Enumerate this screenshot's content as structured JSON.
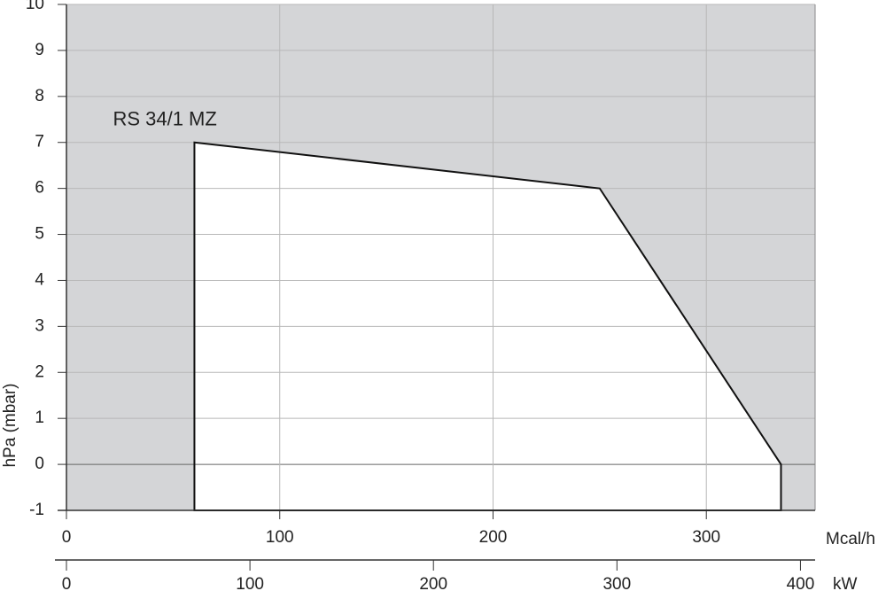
{
  "chart_data": {
    "type": "area",
    "series": [
      {
        "name": "RS 34/1 MZ",
        "x": [
          60,
          60,
          250,
          335,
          335
        ],
        "values": [
          -1,
          7,
          6,
          0,
          -1
        ],
        "color": "#ffffff"
      }
    ],
    "background": "#d4d5d7",
    "xlabel": "Mcal/h",
    "xlim": [
      0,
      351
    ],
    "xticks": [
      0,
      100,
      200,
      300
    ],
    "x2label": "kW",
    "x2lim": [
      0,
      408
    ],
    "x2ticks": [
      0,
      100,
      200,
      300,
      400
    ],
    "ylabel": "hPa (mbar)",
    "ylim": [
      -1,
      10
    ],
    "yticks": [
      -1,
      0,
      1,
      2,
      3,
      4,
      5,
      6,
      7,
      8,
      9,
      10
    ],
    "grid": true
  }
}
